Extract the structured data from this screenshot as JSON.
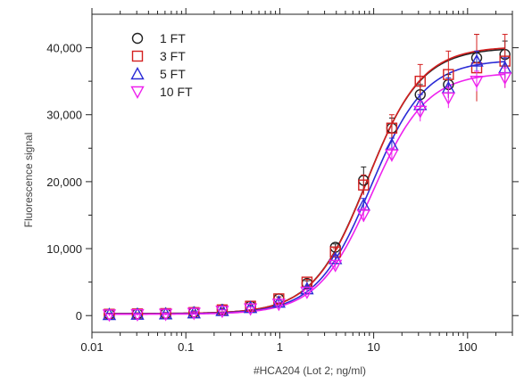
{
  "chart_data": {
    "type": "scatter",
    "title": "",
    "xlabel": "#HCA204 (Lot 2; ng/ml)",
    "ylabel": "Fluorescence signal",
    "x_scale": "log",
    "xlim": [
      0.01,
      300
    ],
    "ylim": [
      -2500,
      45000
    ],
    "x_ticks": [
      {
        "value": 0.01,
        "label": "0.01"
      },
      {
        "value": 0.1,
        "label": "0.1"
      },
      {
        "value": 1,
        "label": "1"
      },
      {
        "value": 10,
        "label": "10"
      },
      {
        "value": 100,
        "label": "100"
      }
    ],
    "y_ticks": [
      {
        "value": 0,
        "label": "0"
      },
      {
        "value": 10000,
        "label": "10,000"
      },
      {
        "value": 20000,
        "label": "20,000"
      },
      {
        "value": 30000,
        "label": "30,000"
      },
      {
        "value": 40000,
        "label": "40,000"
      }
    ],
    "grid": false,
    "legend_position": "top-left",
    "x": [
      0.0153,
      0.0305,
      0.061,
      0.122,
      0.244,
      0.488,
      0.977,
      1.95,
      3.91,
      7.81,
      15.6,
      31.3,
      62.5,
      125,
      250
    ],
    "series": [
      {
        "name": "1 FT",
        "marker": "circle",
        "color": "#222222",
        "values": [
          200,
          250,
          300,
          500,
          900,
          1400,
          2500,
          4800,
          10200,
          20200,
          28000,
          33000,
          34500,
          38500,
          39000
        ],
        "errors": [
          150,
          150,
          150,
          200,
          200,
          250,
          300,
          400,
          500,
          2000,
          1500,
          1500,
          1500,
          3500,
          2000
        ],
        "fit": {
          "bottom": 300,
          "top": 40000,
          "ec50": 8.5,
          "hill": 1.5
        }
      },
      {
        "name": "3 FT",
        "marker": "square",
        "color": "#d42020",
        "values": [
          200,
          250,
          300,
          450,
          850,
          1400,
          2500,
          5000,
          9500,
          19500,
          28000,
          35000,
          36000,
          37000,
          38000
        ],
        "errors": [
          150,
          150,
          150,
          200,
          200,
          250,
          300,
          400,
          500,
          1500,
          2000,
          2500,
          3500,
          5000,
          4000
        ],
        "fit": {
          "bottom": 300,
          "top": 40200,
          "ec50": 8.6,
          "hill": 1.5
        }
      },
      {
        "name": "5 FT",
        "marker": "triangle-up",
        "color": "#2b2bd6",
        "values": [
          150,
          200,
          250,
          400,
          750,
          1200,
          2000,
          4000,
          8500,
          16500,
          25500,
          31500,
          34000,
          38000,
          37000
        ],
        "errors": [
          150,
          150,
          150,
          200,
          200,
          250,
          300,
          400,
          500,
          1000,
          1000,
          1500,
          1500,
          1500,
          1500
        ],
        "fit": {
          "bottom": 250,
          "top": 38200,
          "ec50": 9.3,
          "hill": 1.5
        }
      },
      {
        "name": "10 FT",
        "marker": "triangle-down",
        "color": "#ee22ee",
        "values": [
          100,
          150,
          200,
          350,
          650,
          1000,
          1700,
          3500,
          7500,
          15000,
          24000,
          30500,
          32500,
          35000,
          35500
        ],
        "errors": [
          150,
          150,
          150,
          200,
          200,
          250,
          300,
          400,
          500,
          1000,
          1000,
          1500,
          1500,
          1500,
          1500
        ],
        "fit": {
          "bottom": 200,
          "top": 36300,
          "ec50": 9.6,
          "hill": 1.5
        }
      }
    ]
  }
}
